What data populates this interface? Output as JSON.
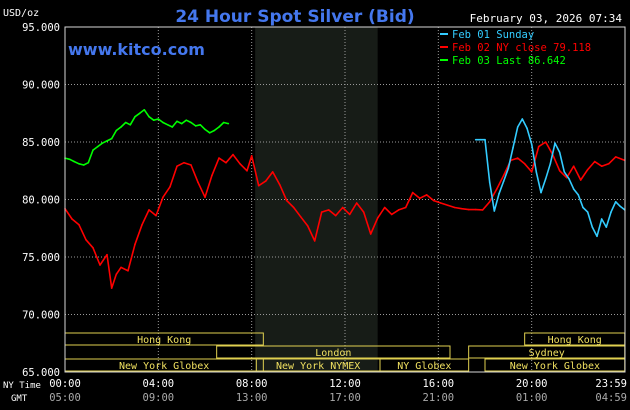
{
  "chart_data": {
    "type": "line",
    "title": "24 Hour Spot Silver (Bid)",
    "source": "www.kitco.com",
    "timestamp": "February 03, 2026 07:34",
    "y_unit": "USD/oz",
    "ylim": [
      65000,
      95000
    ],
    "y_ticks": [
      "95.000",
      "90.000",
      "85.000",
      "80.000",
      "75.000",
      "70.000",
      "65.000"
    ],
    "x_row_labels": [
      "NY Time",
      "GMT"
    ],
    "x_ticks_ny": [
      "00:00",
      "04:00",
      "08:00",
      "12:00",
      "16:00",
      "20:00",
      "23:59"
    ],
    "x_ticks_gmt": [
      "05:00",
      "09:00",
      "13:00",
      "17:00",
      "21:00",
      "01:00",
      "04:59"
    ],
    "legend": [
      {
        "label": "Feb 01 Sunday",
        "color": "#33ccff"
      },
      {
        "label": "Feb 02 NY close 79.118",
        "color": "#ff0000"
      },
      {
        "label": "Feb 03 Last 86.642",
        "color": "#00ff00"
      }
    ],
    "sessions": [
      {
        "label": "Hong Kong",
        "from": 0.0,
        "to": 8.5
      },
      {
        "label": "London",
        "from": 6.5,
        "to": 16.5
      },
      {
        "label": "New York Globex",
        "from": 0.0,
        "to": 8.5
      },
      {
        "label": "New York NYMEX",
        "from": 8.2,
        "to": 13.5
      },
      {
        "label": "NY Globex",
        "from": 13.5,
        "to": 17.3
      },
      {
        "label": "Hong Kong",
        "from": 19.7,
        "to": 23.99
      },
      {
        "label": "Sydney",
        "from": 17.3,
        "to": 23.99
      },
      {
        "label": "New York Globex",
        "from": 18.0,
        "to": 23.99
      }
    ],
    "shaded_period": [
      8.15,
      13.4
    ],
    "series": [
      {
        "color": "#00ff00",
        "x": [
          0.0,
          0.2,
          0.4,
          0.6,
          0.8,
          1.0,
          1.2,
          1.4,
          1.6,
          1.8,
          2.0,
          2.2,
          2.4,
          2.6,
          2.8,
          3.0,
          3.2,
          3.4,
          3.6,
          3.8,
          4.0,
          4.2,
          4.4,
          4.6,
          4.8,
          5.0,
          5.2,
          5.4,
          5.6,
          5.8,
          6.0,
          6.2,
          6.4,
          6.6,
          6.8,
          7.0
        ],
        "y": [
          83600,
          83500,
          83300,
          83100,
          83000,
          83200,
          84300,
          84600,
          84900,
          85100,
          85300,
          86000,
          86300,
          86700,
          86500,
          87200,
          87500,
          87800,
          87200,
          86900,
          87000,
          86700,
          86500,
          86300,
          86800,
          86600,
          86900,
          86700,
          86400,
          86500,
          86100,
          85800,
          86000,
          86300,
          86700,
          86600
        ]
      },
      {
        "color": "#ff0000",
        "x": [
          0.0,
          0.3,
          0.6,
          0.9,
          1.2,
          1.5,
          1.8,
          2.0,
          2.2,
          2.4,
          2.7,
          3.0,
          3.3,
          3.6,
          3.9,
          4.2,
          4.5,
          4.8,
          5.1,
          5.4,
          5.7,
          6.0,
          6.3,
          6.6,
          6.9,
          7.2,
          7.5,
          7.8,
          8.0,
          8.3,
          8.6,
          8.9,
          9.2,
          9.5,
          9.8,
          10.1,
          10.4,
          10.7,
          11.0,
          11.3,
          11.6,
          11.9,
          12.2,
          12.5,
          12.8,
          13.1,
          13.4,
          13.7,
          14.0,
          14.3,
          14.6,
          14.9,
          15.2,
          15.5,
          15.8,
          16.1,
          16.4,
          16.7,
          17.0,
          17.3,
          17.6,
          17.9,
          18.2,
          18.5,
          18.8,
          19.1,
          19.4,
          19.7,
          20.0,
          20.3,
          20.6,
          20.9,
          21.2,
          21.5,
          21.8,
          22.1,
          22.4,
          22.7,
          23.0,
          23.3,
          23.6,
          23.99
        ],
        "y": [
          79200,
          78300,
          77800,
          76500,
          75800,
          74300,
          75200,
          72300,
          73500,
          74100,
          73800,
          76100,
          77800,
          79100,
          78600,
          80200,
          81100,
          82900,
          83200,
          83000,
          81500,
          80200,
          82100,
          83600,
          83200,
          83900,
          83100,
          82500,
          83800,
          81200,
          81600,
          82400,
          81300,
          79900,
          79300,
          78500,
          77700,
          76400,
          78900,
          79100,
          78600,
          79300,
          78700,
          79700,
          78900,
          77000,
          78400,
          79300,
          78700,
          79100,
          79300,
          80600,
          80100,
          80400,
          79900,
          79700,
          79500,
          79300,
          79200,
          79118,
          79118,
          79100,
          79800,
          80900,
          82100,
          83400,
          83600,
          83100,
          82400,
          84600,
          85000,
          83900,
          82500,
          81900,
          82900,
          81700,
          82600,
          83300,
          82900,
          83100,
          83700,
          83400
        ]
      },
      {
        "color": "#33ccff",
        "x": [
          17.6,
          17.8,
          18.0,
          18.2,
          18.4,
          18.6,
          18.8,
          19.0,
          19.2,
          19.4,
          19.6,
          19.8,
          20.0,
          20.2,
          20.4,
          20.6,
          20.8,
          21.0,
          21.2,
          21.4,
          21.6,
          21.8,
          22.0,
          22.2,
          22.4,
          22.6,
          22.8,
          23.0,
          23.2,
          23.4,
          23.6,
          23.8,
          23.99
        ],
        "y": [
          85200,
          85200,
          85200,
          81500,
          79000,
          80500,
          81600,
          82700,
          84500,
          86300,
          87000,
          86200,
          84800,
          82400,
          80600,
          81800,
          83100,
          84900,
          84100,
          82400,
          81800,
          80900,
          80400,
          79300,
          78900,
          77600,
          76800,
          78300,
          77600,
          78900,
          79800,
          79400,
          79100
        ]
      }
    ]
  }
}
